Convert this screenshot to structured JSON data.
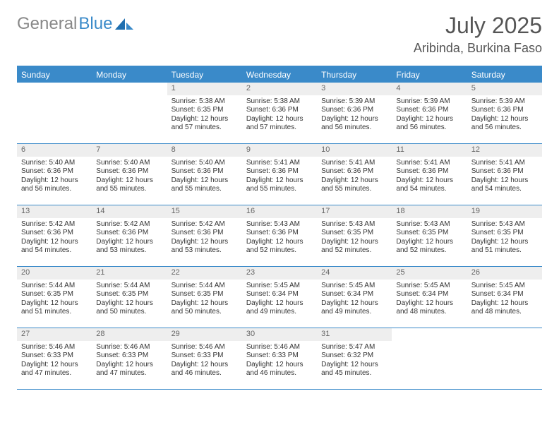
{
  "brand": {
    "name1": "General",
    "name2": "Blue"
  },
  "title": {
    "month_year": "July 2025",
    "location": "Aribinda, Burkina Faso"
  },
  "colors": {
    "accent": "#3a8ac9",
    "daynum_bg": "#eeeeee",
    "text": "#333333",
    "muted": "#666666"
  },
  "day_headers": [
    "Sunday",
    "Monday",
    "Tuesday",
    "Wednesday",
    "Thursday",
    "Friday",
    "Saturday"
  ],
  "weeks": [
    [
      null,
      null,
      {
        "n": "1",
        "sunrise": "Sunrise: 5:38 AM",
        "sunset": "Sunset: 6:35 PM",
        "day1": "Daylight: 12 hours",
        "day2": "and 57 minutes."
      },
      {
        "n": "2",
        "sunrise": "Sunrise: 5:38 AM",
        "sunset": "Sunset: 6:36 PM",
        "day1": "Daylight: 12 hours",
        "day2": "and 57 minutes."
      },
      {
        "n": "3",
        "sunrise": "Sunrise: 5:39 AM",
        "sunset": "Sunset: 6:36 PM",
        "day1": "Daylight: 12 hours",
        "day2": "and 56 minutes."
      },
      {
        "n": "4",
        "sunrise": "Sunrise: 5:39 AM",
        "sunset": "Sunset: 6:36 PM",
        "day1": "Daylight: 12 hours",
        "day2": "and 56 minutes."
      },
      {
        "n": "5",
        "sunrise": "Sunrise: 5:39 AM",
        "sunset": "Sunset: 6:36 PM",
        "day1": "Daylight: 12 hours",
        "day2": "and 56 minutes."
      }
    ],
    [
      {
        "n": "6",
        "sunrise": "Sunrise: 5:40 AM",
        "sunset": "Sunset: 6:36 PM",
        "day1": "Daylight: 12 hours",
        "day2": "and 56 minutes."
      },
      {
        "n": "7",
        "sunrise": "Sunrise: 5:40 AM",
        "sunset": "Sunset: 6:36 PM",
        "day1": "Daylight: 12 hours",
        "day2": "and 55 minutes."
      },
      {
        "n": "8",
        "sunrise": "Sunrise: 5:40 AM",
        "sunset": "Sunset: 6:36 PM",
        "day1": "Daylight: 12 hours",
        "day2": "and 55 minutes."
      },
      {
        "n": "9",
        "sunrise": "Sunrise: 5:41 AM",
        "sunset": "Sunset: 6:36 PM",
        "day1": "Daylight: 12 hours",
        "day2": "and 55 minutes."
      },
      {
        "n": "10",
        "sunrise": "Sunrise: 5:41 AM",
        "sunset": "Sunset: 6:36 PM",
        "day1": "Daylight: 12 hours",
        "day2": "and 55 minutes."
      },
      {
        "n": "11",
        "sunrise": "Sunrise: 5:41 AM",
        "sunset": "Sunset: 6:36 PM",
        "day1": "Daylight: 12 hours",
        "day2": "and 54 minutes."
      },
      {
        "n": "12",
        "sunrise": "Sunrise: 5:41 AM",
        "sunset": "Sunset: 6:36 PM",
        "day1": "Daylight: 12 hours",
        "day2": "and 54 minutes."
      }
    ],
    [
      {
        "n": "13",
        "sunrise": "Sunrise: 5:42 AM",
        "sunset": "Sunset: 6:36 PM",
        "day1": "Daylight: 12 hours",
        "day2": "and 54 minutes."
      },
      {
        "n": "14",
        "sunrise": "Sunrise: 5:42 AM",
        "sunset": "Sunset: 6:36 PM",
        "day1": "Daylight: 12 hours",
        "day2": "and 53 minutes."
      },
      {
        "n": "15",
        "sunrise": "Sunrise: 5:42 AM",
        "sunset": "Sunset: 6:36 PM",
        "day1": "Daylight: 12 hours",
        "day2": "and 53 minutes."
      },
      {
        "n": "16",
        "sunrise": "Sunrise: 5:43 AM",
        "sunset": "Sunset: 6:36 PM",
        "day1": "Daylight: 12 hours",
        "day2": "and 52 minutes."
      },
      {
        "n": "17",
        "sunrise": "Sunrise: 5:43 AM",
        "sunset": "Sunset: 6:35 PM",
        "day1": "Daylight: 12 hours",
        "day2": "and 52 minutes."
      },
      {
        "n": "18",
        "sunrise": "Sunrise: 5:43 AM",
        "sunset": "Sunset: 6:35 PM",
        "day1": "Daylight: 12 hours",
        "day2": "and 52 minutes."
      },
      {
        "n": "19",
        "sunrise": "Sunrise: 5:43 AM",
        "sunset": "Sunset: 6:35 PM",
        "day1": "Daylight: 12 hours",
        "day2": "and 51 minutes."
      }
    ],
    [
      {
        "n": "20",
        "sunrise": "Sunrise: 5:44 AM",
        "sunset": "Sunset: 6:35 PM",
        "day1": "Daylight: 12 hours",
        "day2": "and 51 minutes."
      },
      {
        "n": "21",
        "sunrise": "Sunrise: 5:44 AM",
        "sunset": "Sunset: 6:35 PM",
        "day1": "Daylight: 12 hours",
        "day2": "and 50 minutes."
      },
      {
        "n": "22",
        "sunrise": "Sunrise: 5:44 AM",
        "sunset": "Sunset: 6:35 PM",
        "day1": "Daylight: 12 hours",
        "day2": "and 50 minutes."
      },
      {
        "n": "23",
        "sunrise": "Sunrise: 5:45 AM",
        "sunset": "Sunset: 6:34 PM",
        "day1": "Daylight: 12 hours",
        "day2": "and 49 minutes."
      },
      {
        "n": "24",
        "sunrise": "Sunrise: 5:45 AM",
        "sunset": "Sunset: 6:34 PM",
        "day1": "Daylight: 12 hours",
        "day2": "and 49 minutes."
      },
      {
        "n": "25",
        "sunrise": "Sunrise: 5:45 AM",
        "sunset": "Sunset: 6:34 PM",
        "day1": "Daylight: 12 hours",
        "day2": "and 48 minutes."
      },
      {
        "n": "26",
        "sunrise": "Sunrise: 5:45 AM",
        "sunset": "Sunset: 6:34 PM",
        "day1": "Daylight: 12 hours",
        "day2": "and 48 minutes."
      }
    ],
    [
      {
        "n": "27",
        "sunrise": "Sunrise: 5:46 AM",
        "sunset": "Sunset: 6:33 PM",
        "day1": "Daylight: 12 hours",
        "day2": "and 47 minutes."
      },
      {
        "n": "28",
        "sunrise": "Sunrise: 5:46 AM",
        "sunset": "Sunset: 6:33 PM",
        "day1": "Daylight: 12 hours",
        "day2": "and 47 minutes."
      },
      {
        "n": "29",
        "sunrise": "Sunrise: 5:46 AM",
        "sunset": "Sunset: 6:33 PM",
        "day1": "Daylight: 12 hours",
        "day2": "and 46 minutes."
      },
      {
        "n": "30",
        "sunrise": "Sunrise: 5:46 AM",
        "sunset": "Sunset: 6:33 PM",
        "day1": "Daylight: 12 hours",
        "day2": "and 46 minutes."
      },
      {
        "n": "31",
        "sunrise": "Sunrise: 5:47 AM",
        "sunset": "Sunset: 6:32 PM",
        "day1": "Daylight: 12 hours",
        "day2": "and 45 minutes."
      },
      null,
      null
    ]
  ]
}
